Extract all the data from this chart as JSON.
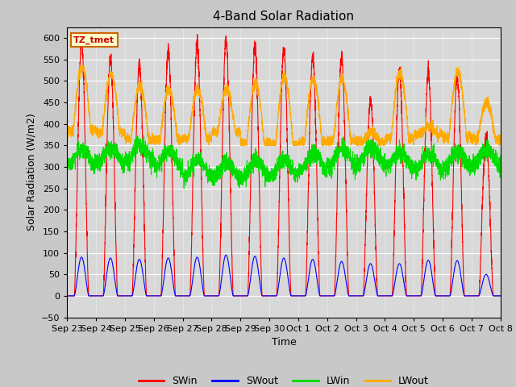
{
  "title": "4-Band Solar Radiation",
  "xlabel": "Time",
  "ylabel": "Solar Radiation (W/m2)",
  "ylim": [
    -50,
    625
  ],
  "yticks": [
    -50,
    0,
    50,
    100,
    150,
    200,
    250,
    300,
    350,
    400,
    450,
    500,
    550,
    600
  ],
  "fig_facecolor": "#c8c8c8",
  "ax_facecolor": "#d8d8d8",
  "label_box_text": "TZ_tmet",
  "label_box_facecolor": "#ffffcc",
  "label_box_edgecolor": "#cc6600",
  "series_colors": {
    "SWin": "#ff0000",
    "SWout": "#0000ff",
    "LWin": "#00dd00",
    "LWout": "#ffaa00"
  },
  "x_tick_labels": [
    "Sep 23",
    "Sep 24",
    "Sep 25",
    "Sep 26",
    "Sep 27",
    "Sep 28",
    "Sep 29",
    "Sep 30",
    "Oct 1",
    "Oct 2",
    "Oct 3",
    "Oct 4",
    "Oct 5",
    "Oct 6",
    "Oct 7",
    "Oct 8"
  ],
  "n_days": 15,
  "pts_per_day": 288
}
